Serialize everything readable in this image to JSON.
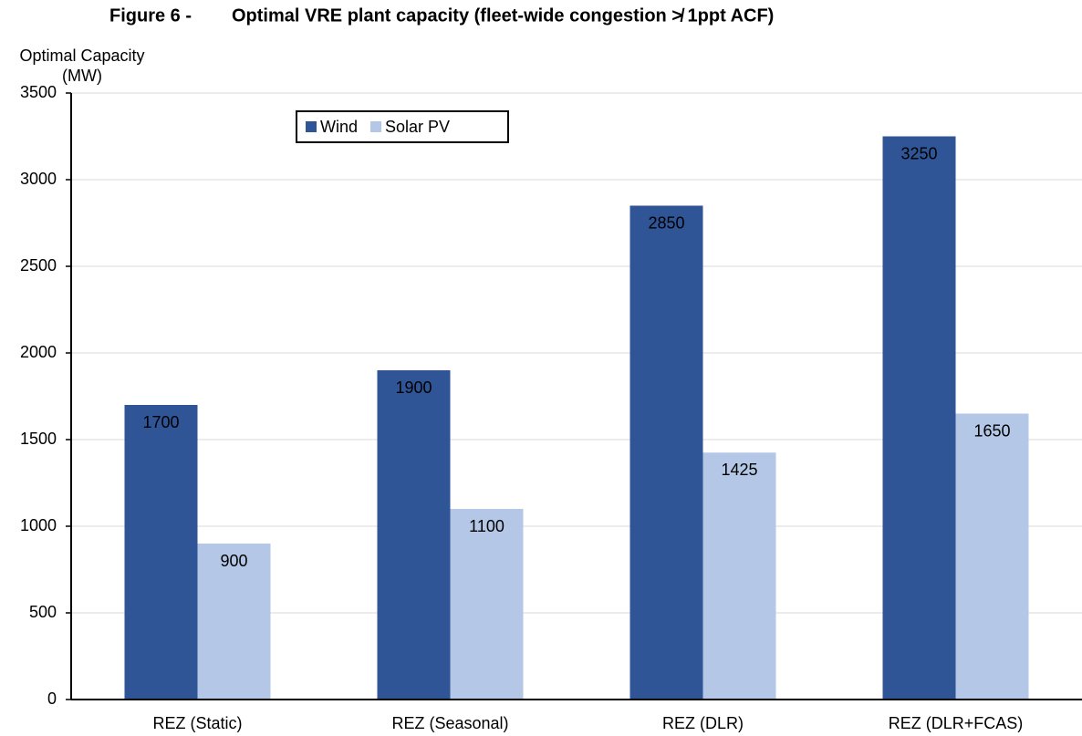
{
  "chart_data": {
    "type": "bar",
    "figure_label": "Figure 6 -",
    "title": "Optimal VRE plant capacity (fleet-wide congestion ≯ 1ppt ACF)",
    "ylabel": [
      "Optimal Capacity",
      "(MW)"
    ],
    "categories": [
      "REZ (Static)",
      "REZ (Seasonal)",
      "REZ (DLR)",
      "REZ (DLR+FCAS)"
    ],
    "series": [
      {
        "name": "Wind",
        "color": "#2f5597",
        "values": [
          1700,
          1900,
          2850,
          3250
        ]
      },
      {
        "name": "Solar PV",
        "color": "#b4c7e7",
        "values": [
          900,
          1100,
          1425,
          1650
        ]
      }
    ],
    "ylim": [
      0,
      3500
    ],
    "yticks": [
      0,
      500,
      1000,
      1500,
      2000,
      2500,
      3000,
      3500
    ],
    "grid": true,
    "legend": "top-left"
  }
}
